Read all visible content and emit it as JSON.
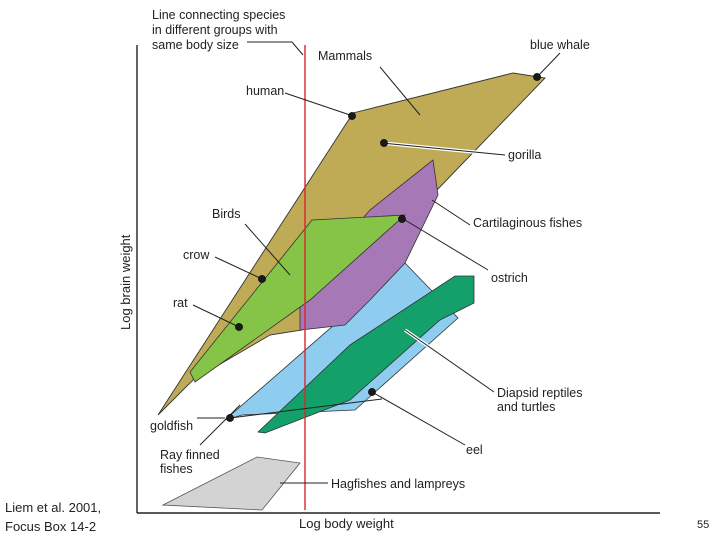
{
  "title_note": [
    "Line connecting species",
    "in different groups with",
    "same body size"
  ],
  "axes": {
    "x_label": "Log body weight",
    "y_label": "Log brain weight"
  },
  "groups": {
    "mammals": {
      "label": "Mammals",
      "color": "#bfaa55"
    },
    "birds": {
      "label": "Birds",
      "color": "#86c447"
    },
    "cartilaginous": {
      "label": "Cartilaginous fishes",
      "color": "#a678b5"
    },
    "ray_finned": {
      "label": [
        "Ray finned",
        "fishes"
      ],
      "color": "#8ecdf0"
    },
    "diapsid": {
      "label": [
        "Diapsid reptiles",
        "and turtles"
      ],
      "color": "#14a06a"
    },
    "hagfishes": {
      "label": "Hagfishes and lampreys",
      "color": "#d3d3d3"
    }
  },
  "species": {
    "blue_whale": "blue whale",
    "human": "human",
    "gorilla": "gorilla",
    "crow": "crow",
    "rat": "rat",
    "ostrich": "ostrich",
    "goldfish": "goldfish",
    "eel": "eel"
  },
  "citation": [
    "Liem et al. 2001,",
    "Focus Box 14-2"
  ],
  "page_number": "55",
  "colors": {
    "reference_line": "#d6282e",
    "axis": "#222222"
  }
}
